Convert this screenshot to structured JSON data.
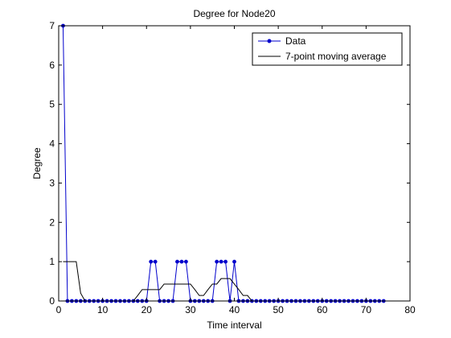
{
  "chart_data": {
    "type": "line",
    "title": "Degree for Node20",
    "xlabel": "Time interval",
    "ylabel": "Degree",
    "xlim": [
      0,
      80
    ],
    "ylim": [
      0,
      7
    ],
    "xticks": [
      0,
      10,
      20,
      30,
      40,
      50,
      60,
      70,
      80
    ],
    "yticks": [
      0,
      1,
      2,
      3,
      4,
      5,
      6,
      7
    ],
    "grid": false,
    "legend_position": "top-right",
    "series": [
      {
        "name": "Data",
        "color": "#0000cc",
        "marker": "dot",
        "x": [
          1,
          2,
          3,
          4,
          5,
          6,
          7,
          8,
          9,
          10,
          11,
          12,
          13,
          14,
          15,
          16,
          17,
          18,
          19,
          20,
          21,
          22,
          23,
          24,
          25,
          26,
          27,
          28,
          29,
          30,
          31,
          32,
          33,
          34,
          35,
          36,
          37,
          38,
          39,
          40,
          41,
          42,
          43,
          44,
          45,
          46,
          47,
          48,
          49,
          50,
          51,
          52,
          53,
          54,
          55,
          56,
          57,
          58,
          59,
          60,
          61,
          62,
          63,
          64,
          65,
          66,
          67,
          68,
          69,
          70,
          71,
          72,
          73,
          74
        ],
        "y": [
          7,
          0,
          0,
          0,
          0,
          0,
          0,
          0,
          0,
          0,
          0,
          0,
          0,
          0,
          0,
          0,
          0,
          0,
          0,
          0,
          1,
          1,
          0,
          0,
          0,
          0,
          1,
          1,
          1,
          0,
          0,
          0,
          0,
          0,
          0,
          1,
          1,
          1,
          0,
          1,
          0,
          0,
          0,
          0,
          0,
          0,
          0,
          0,
          0,
          0,
          0,
          0,
          0,
          0,
          0,
          0,
          0,
          0,
          0,
          0,
          0,
          0,
          0,
          0,
          0,
          0,
          0,
          0,
          0,
          0,
          0,
          0,
          0,
          0
        ]
      },
      {
        "name": "7-point moving average",
        "color": "#000000",
        "marker": "none",
        "x": [
          1,
          4,
          5,
          6,
          7,
          17,
          18,
          19,
          20,
          21,
          22,
          23,
          24,
          25,
          26,
          27,
          28,
          29,
          30,
          31,
          32,
          33,
          34,
          35,
          36,
          37,
          38,
          39,
          40,
          41,
          42,
          43,
          44,
          45,
          74
        ],
        "y": [
          1,
          1,
          0.2,
          0,
          0,
          0,
          0.14,
          0.29,
          0.29,
          0.29,
          0.29,
          0.29,
          0.43,
          0.43,
          0.43,
          0.43,
          0.43,
          0.43,
          0.43,
          0.29,
          0.14,
          0.14,
          0.29,
          0.43,
          0.43,
          0.57,
          0.57,
          0.57,
          0.43,
          0.29,
          0.14,
          0.14,
          0,
          0,
          0
        ]
      }
    ]
  }
}
